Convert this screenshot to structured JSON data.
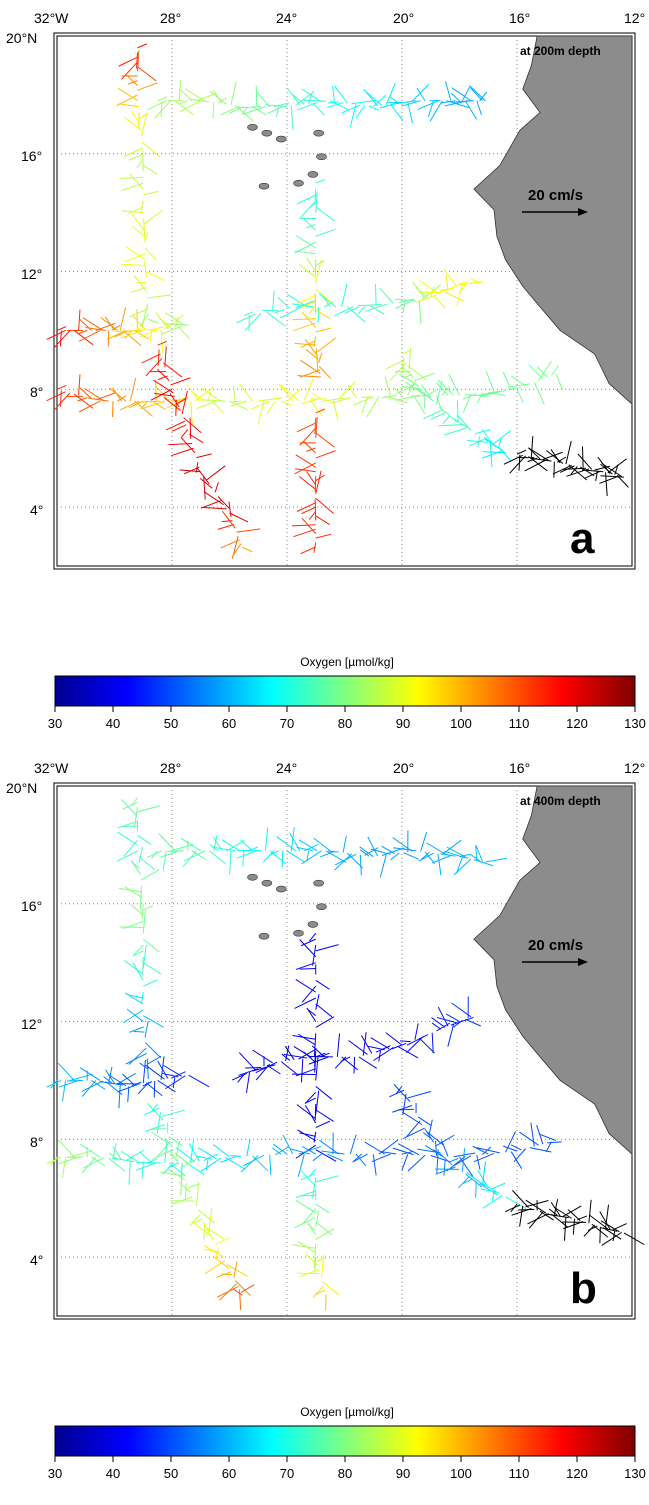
{
  "colors": {
    "land": "#8c8c8c",
    "colormap": [
      "#00008f",
      "#0000ff",
      "#0080ff",
      "#00ffff",
      "#80ff80",
      "#ffff00",
      "#ff8000",
      "#ff0000",
      "#800000"
    ]
  },
  "colorbar": {
    "title": "Oxygen [µmol/kg]",
    "ticks": [
      "30",
      "40",
      "50",
      "60",
      "70",
      "80",
      "90",
      "100",
      "110",
      "120",
      "130"
    ]
  },
  "axes": {
    "x_labels": [
      "32°W",
      "28°",
      "24°",
      "20°",
      "16°",
      "12°"
    ],
    "y_labels": [
      "20°N",
      "16°",
      "12°",
      "8°",
      "4°"
    ]
  },
  "panels": [
    {
      "id": "a",
      "letter": "a",
      "depth_label": "at 200m depth",
      "scale_label": "20 cm/s",
      "tracks": [
        {
          "name": "northern-section",
          "pts": [
            [
              -28.5,
              17.8
            ],
            [
              -27,
              17.8
            ],
            [
              -25.5,
              17.6
            ],
            [
              -24,
              17.6
            ],
            [
              -22.5,
              17.8
            ],
            [
              -21,
              17.6
            ],
            [
              -19.5,
              17.8
            ],
            [
              -18,
              17.8
            ],
            [
              -17,
              17.8
            ]
          ],
          "c": [
            82,
            85,
            80,
            75,
            70,
            67,
            63,
            60,
            58
          ]
        },
        {
          "name": "meridional-29w",
          "pts": [
            [
              -29.2,
              19.6
            ],
            [
              -29.2,
              18
            ],
            [
              -29,
              16
            ],
            [
              -29,
              14
            ],
            [
              -28.9,
              12
            ],
            [
              -28.8,
              10.2
            ]
          ],
          "c": [
            118,
            100,
            85,
            88,
            92,
            80
          ]
        },
        {
          "name": "section-10n-west",
          "pts": [
            [
              -32,
              10
            ],
            [
              -30.5,
              10
            ],
            [
              -29.5,
              10
            ],
            [
              -28.5,
              10
            ],
            [
              -27.3,
              10.2
            ]
          ],
          "c": [
            118,
            108,
            100,
            92,
            80
          ]
        },
        {
          "name": "section-11n",
          "pts": [
            [
              -25.5,
              10.5
            ],
            [
              -23.5,
              10.8
            ],
            [
              -21.5,
              10.8
            ],
            [
              -19.5,
              11
            ],
            [
              -18.5,
              11.3
            ],
            [
              -17.5,
              11.8
            ]
          ],
          "c": [
            75,
            70,
            72,
            78,
            95,
            90
          ]
        },
        {
          "name": "meridional-23w-north",
          "pts": [
            [
              -23,
              15
            ],
            [
              -23,
              13
            ],
            [
              -23,
              11
            ],
            [
              -23,
              9.5
            ],
            [
              -22.8,
              8.3
            ]
          ],
          "c": [
            70,
            75,
            95,
            100,
            105
          ]
        },
        {
          "name": "section-8n",
          "pts": [
            [
              -32,
              8
            ],
            [
              -30.5,
              7.6
            ],
            [
              -29,
              7.6
            ],
            [
              -27.5,
              7.6
            ],
            [
              -26,
              7.6
            ],
            [
              -24,
              7.6
            ],
            [
              -22,
              7.7
            ],
            [
              -20,
              7.8
            ],
            [
              -18,
              7.8
            ],
            [
              -16,
              8
            ],
            [
              -14.5,
              8.6
            ]
          ],
          "c": [
            115,
            108,
            100,
            95,
            85,
            92,
            88,
            82,
            78,
            78,
            80
          ]
        },
        {
          "name": "diagonal-ne",
          "pts": [
            [
              -20,
              9.2
            ],
            [
              -19.5,
              8.2
            ],
            [
              -18.5,
              7.2
            ],
            [
              -17,
              6.2
            ],
            [
              -16.3,
              5.8
            ]
          ],
          "c": [
            88,
            80,
            75,
            70,
            65
          ]
        },
        {
          "name": "diagonal-sw",
          "pts": [
            [
              -28.5,
              9.5
            ],
            [
              -28,
              8
            ],
            [
              -27.5,
              6.8
            ],
            [
              -27,
              5.2
            ],
            [
              -26,
              3.8
            ],
            [
              -25.5,
              2.5
            ]
          ],
          "c": [
            112,
            118,
            115,
            122,
            120,
            100
          ]
        },
        {
          "name": "meridional-23w-south",
          "pts": [
            [
              -23,
              7.2
            ],
            [
              -23,
              5.5
            ],
            [
              -23,
              4
            ],
            [
              -23,
              2.5
            ]
          ],
          "c": [
            110,
            112,
            115,
            112
          ]
        },
        {
          "name": "black-east",
          "pts": [
            [
              -16,
              5.8
            ],
            [
              -15,
              5.6
            ],
            [
              -14,
              5.4
            ],
            [
              -13,
              5.2
            ],
            [
              -12.2,
              5
            ]
          ],
          "c": [
            null,
            null,
            null,
            null,
            null
          ]
        }
      ]
    },
    {
      "id": "b",
      "letter": "b",
      "depth_label": "at 400m depth",
      "scale_label": "20 cm/s",
      "tracks": [
        {
          "name": "northern-section",
          "pts": [
            [
              -28.5,
              17.8
            ],
            [
              -27,
              17.8
            ],
            [
              -25.5,
              17.8
            ],
            [
              -24,
              17.8
            ],
            [
              -22.5,
              17.8
            ],
            [
              -21,
              17.6
            ],
            [
              -19.5,
              17.8
            ],
            [
              -18,
              17.6
            ],
            [
              -17,
              17.4
            ]
          ],
          "c": [
            78,
            75,
            70,
            65,
            60,
            58,
            58,
            60,
            62
          ]
        },
        {
          "name": "meridional-29w",
          "pts": [
            [
              -29.2,
              19.6
            ],
            [
              -29.2,
              18
            ],
            [
              -29,
              16
            ],
            [
              -29,
              14
            ],
            [
              -29,
              12
            ],
            [
              -28.8,
              10.2
            ]
          ],
          "c": [
            80,
            72,
            82,
            75,
            60,
            52
          ]
        },
        {
          "name": "section-10n-west",
          "pts": [
            [
              -32,
              10
            ],
            [
              -30.5,
              10
            ],
            [
              -29.5,
              9.8
            ],
            [
              -28.5,
              10
            ],
            [
              -27.3,
              10.2
            ]
          ],
          "c": [
            62,
            58,
            52,
            48,
            45
          ]
        },
        {
          "name": "section-11n",
          "pts": [
            [
              -25.5,
              10.2
            ],
            [
              -24.5,
              10.6
            ],
            [
              -23,
              10.8
            ],
            [
              -21.5,
              10.8
            ],
            [
              -20,
              11.2
            ],
            [
              -18.5,
              11.8
            ],
            [
              -17.5,
              12.2
            ]
          ],
          "c": [
            42,
            40,
            38,
            40,
            42,
            45,
            48
          ]
        },
        {
          "name": "meridional-23w-north",
          "pts": [
            [
              -23,
              15
            ],
            [
              -23,
              13
            ],
            [
              -23,
              11
            ],
            [
              -23,
              9
            ],
            [
              -23,
              7.5
            ]
          ],
          "c": [
            42,
            42,
            40,
            40,
            42
          ]
        },
        {
          "name": "section-8n",
          "pts": [
            [
              -32,
              7.4
            ],
            [
              -30.5,
              7.4
            ],
            [
              -29,
              7.2
            ],
            [
              -27.5,
              7.2
            ],
            [
              -26,
              7.4
            ],
            [
              -24,
              7.5
            ],
            [
              -22,
              7.5
            ],
            [
              -20,
              7.5
            ],
            [
              -18,
              7.4
            ],
            [
              -16,
              7.6
            ],
            [
              -14.5,
              8
            ]
          ],
          "c": [
            85,
            78,
            72,
            68,
            65,
            60,
            55,
            50,
            52,
            50,
            50
          ]
        },
        {
          "name": "diagonal-ne",
          "pts": [
            [
              -20,
              9.8
            ],
            [
              -19.3,
              8.5
            ],
            [
              -18.5,
              7.3
            ],
            [
              -17.3,
              6.5
            ],
            [
              -16.3,
              6
            ]
          ],
          "c": [
            48,
            50,
            55,
            62,
            72
          ]
        },
        {
          "name": "diagonal-sw",
          "pts": [
            [
              -28.5,
              9.2
            ],
            [
              -28,
              7.8
            ],
            [
              -27.5,
              6.5
            ],
            [
              -26.8,
              5
            ],
            [
              -26,
              3.6
            ],
            [
              -25.5,
              2.6
            ]
          ],
          "c": [
            70,
            78,
            82,
            88,
            98,
            112
          ]
        },
        {
          "name": "meridional-23w-south",
          "pts": [
            [
              -23,
              7
            ],
            [
              -23,
              5.5
            ],
            [
              -23,
              4
            ],
            [
              -22.6,
              2.6
            ]
          ],
          "c": [
            70,
            78,
            85,
            100
          ]
        },
        {
          "name": "black-east",
          "pts": [
            [
              -16,
              5.8
            ],
            [
              -15,
              5.5
            ],
            [
              -14,
              5.3
            ],
            [
              -13,
              5
            ],
            [
              -12.2,
              4.8
            ]
          ],
          "c": [
            null,
            null,
            null,
            null,
            null
          ]
        }
      ]
    }
  ]
}
